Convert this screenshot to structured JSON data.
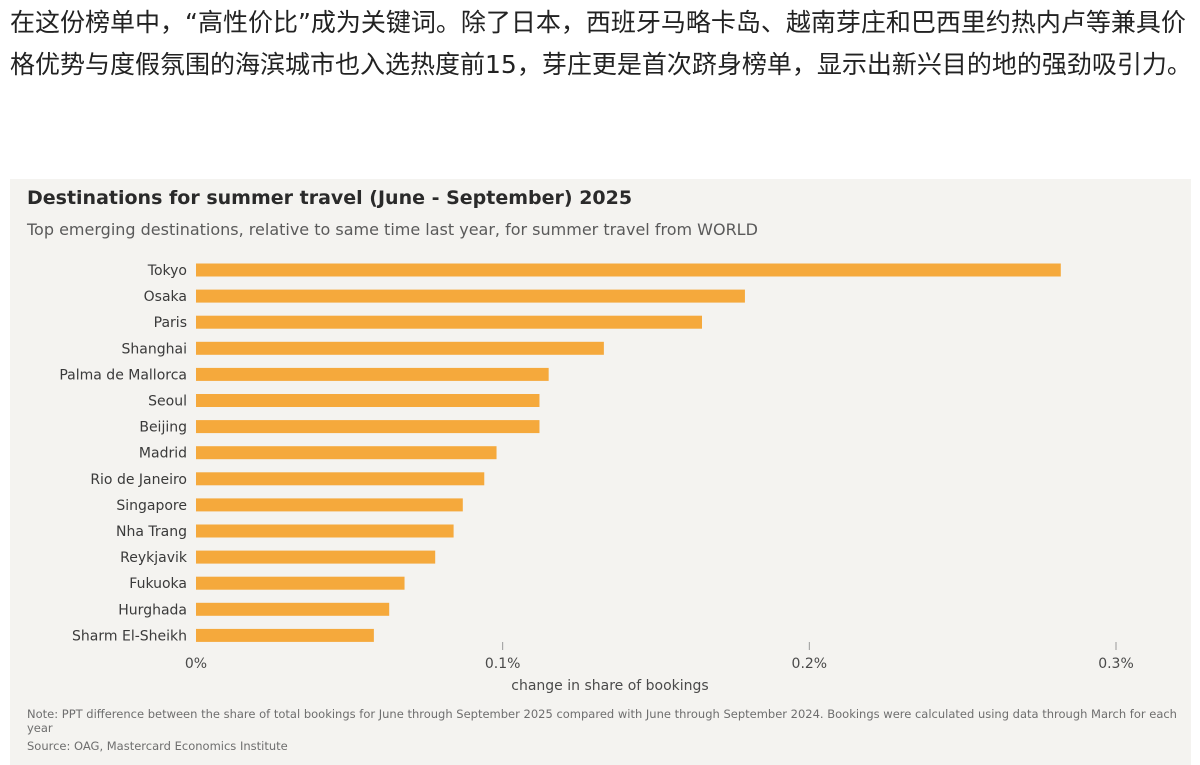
{
  "article": {
    "text": "在这份榜单中，“高性价比”成为关键词。除了日本，西班牙马略卡岛、越南芽庄和巴西里约热内卢等兼具价格优势与度假氛围的海滨城市也入选热度前15，芽庄更是首次跻身榜单，显示出新兴目的地的强劲吸引力。"
  },
  "colors": {
    "bar": "#f5a93c",
    "card_background": "#f4f3f0",
    "text_dark": "#2a2a2a",
    "text_muted": "#5a5a5a"
  },
  "chart_data": {
    "type": "bar",
    "orientation": "horizontal",
    "title": "Destinations for summer travel (June - September) 2025",
    "subtitle": "Top emerging destinations, relative to same time last year, for summer travel from WORLD",
    "xlabel": "change in share of bookings",
    "ylabel": "",
    "xlim": [
      0,
      0.3
    ],
    "xticks": [
      {
        "value": 0,
        "label": "0%"
      },
      {
        "value": 0.1,
        "label": "0.1%"
      },
      {
        "value": 0.2,
        "label": "0.2%"
      },
      {
        "value": 0.3,
        "label": "0.3%"
      }
    ],
    "grid": false,
    "categories": [
      "Tokyo",
      "Osaka",
      "Paris",
      "Shanghai",
      "Palma de Mallorca",
      "Seoul",
      "Beijing",
      "Madrid",
      "Rio de Janeiro",
      "Singapore",
      "Nha Trang",
      "Reykjavik",
      "Fukuoka",
      "Hurghada",
      "Sharm El-Sheikh"
    ],
    "values": [
      0.282,
      0.179,
      0.165,
      0.133,
      0.115,
      0.112,
      0.112,
      0.098,
      0.094,
      0.087,
      0.084,
      0.078,
      0.068,
      0.063,
      0.058
    ],
    "note": "Note: PPT difference between the share of total bookings for June through September 2025 compared with June through September 2024. Bookings were calculated using data through March for each year",
    "source": "Source: OAG, Mastercard Economics Institute"
  }
}
